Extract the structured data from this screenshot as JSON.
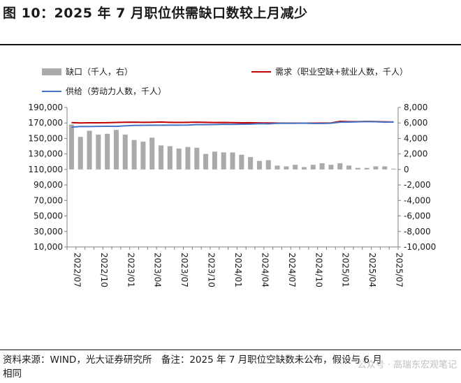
{
  "title": "图 10：2025 年 7 月职位供需缺口数较上月减少",
  "legend": {
    "gap": "缺口（千人，右）",
    "demand": "需求（职业空缺+就业人数，千人）",
    "supply": "供给（劳动力人数，千人）"
  },
  "footer": {
    "line1": "资料来源：WIND，光大证券研究所　备注：2025 年 7 月职位空缺数未公布，假设与 6 月",
    "line2": "相同"
  },
  "watermark": "公众号 · 高瑞东宏观笔记",
  "colors": {
    "gap": "#aaaaaa",
    "demand": "#c00000",
    "supply": "#4472c4"
  },
  "chart_data": {
    "type": "bar",
    "x": [
      "2022/07",
      "2022/08",
      "2022/09",
      "2022/10",
      "2022/11",
      "2022/12",
      "2023/01",
      "2023/02",
      "2023/03",
      "2023/04",
      "2023/05",
      "2023/06",
      "2023/07",
      "2023/08",
      "2023/09",
      "2023/10",
      "2023/11",
      "2023/12",
      "2024/01",
      "2024/02",
      "2024/03",
      "2024/04",
      "2024/05",
      "2024/06",
      "2024/07",
      "2024/08",
      "2024/09",
      "2024/10",
      "2024/11",
      "2024/12",
      "2025/01",
      "2025/02",
      "2025/03",
      "2025/04",
      "2025/05",
      "2025/06",
      "2025/07"
    ],
    "tick_labels": [
      "2022/07",
      "2022/10",
      "2023/01",
      "2023/04",
      "2023/07",
      "2023/10",
      "2024/01",
      "2024/04",
      "2024/07",
      "2024/10",
      "2025/01",
      "2025/04",
      "2025/07"
    ],
    "series": [
      {
        "name": "缺口（千人，右）",
        "kind": "bar",
        "axis": "right",
        "values": [
          5800,
          4200,
          5000,
          4500,
          4600,
          5100,
          4500,
          3800,
          3600,
          4100,
          3100,
          3000,
          2700,
          2900,
          2800,
          2000,
          2300,
          2200,
          2200,
          1900,
          1600,
          1100,
          1200,
          500,
          400,
          600,
          300,
          600,
          800,
          600,
          800,
          500,
          200,
          200,
          400,
          400,
          100
        ]
      },
      {
        "name": "需求（职业空缺+就业人数，千人）",
        "kind": "line",
        "axis": "left",
        "values": [
          170400,
          170000,
          170200,
          170200,
          170300,
          170600,
          170900,
          171000,
          170800,
          170900,
          171200,
          170800,
          170600,
          170800,
          171000,
          170800,
          170500,
          170600,
          170400,
          170200,
          170300,
          170100,
          170000,
          169900,
          169800,
          169700,
          169700,
          169800,
          169900,
          170000,
          172000,
          171700,
          171700,
          172000,
          171800,
          171400,
          171200
        ]
      },
      {
        "name": "供给（劳动力人数，千人）",
        "kind": "line",
        "axis": "left",
        "values": [
          164600,
          165500,
          165400,
          165600,
          165700,
          165600,
          166300,
          166800,
          166900,
          167000,
          167100,
          167200,
          167200,
          167300,
          167800,
          167800,
          168000,
          168300,
          168200,
          168400,
          168500,
          169100,
          168900,
          169500,
          169500,
          169500,
          169700,
          169300,
          169300,
          169600,
          171000,
          171100,
          171400,
          171800,
          171600,
          171000,
          171200
        ]
      }
    ],
    "yleft": {
      "lim": [
        10000,
        190000
      ],
      "ticks": [
        "10,000",
        "30,000",
        "50,000",
        "70,000",
        "90,000",
        "110,000",
        "130,000",
        "150,000",
        "170,000",
        "190,000"
      ]
    },
    "yright": {
      "lim": [
        -10000,
        8000
      ],
      "ticks": [
        "-10,000",
        "-8,000",
        "-6,000",
        "-4,000",
        "-2,000",
        "0",
        "2,000",
        "4,000",
        "6,000",
        "8,000"
      ]
    },
    "grid": false,
    "legend_position": "top"
  }
}
